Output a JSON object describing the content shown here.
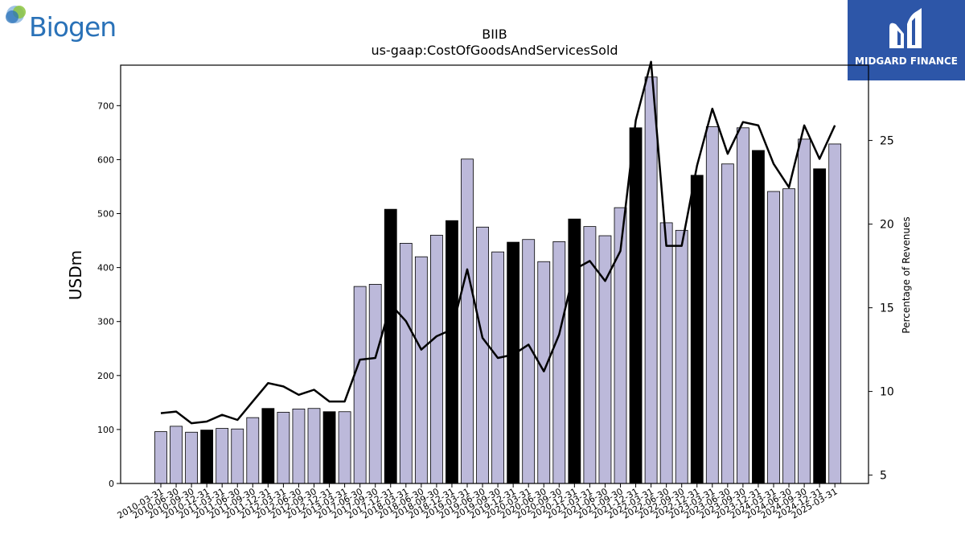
{
  "logos": {
    "left_brand": "Biogen",
    "right_brand": "MIDGARD FINANCE"
  },
  "colors": {
    "bar_default": "#bcb9da",
    "bar_highlight": "#000000",
    "line": "#000000",
    "biogen_blue": "#2a72b8",
    "midgard_blue": "#2d56a8"
  },
  "chart_data": {
    "type": "bar",
    "title": "BIIB",
    "subtitle": "us-gaap:CostOfGoodsAndServicesSold",
    "ylabel": "USDm",
    "y2label": "Percentage of Revenues",
    "ylim": [
      0,
      775
    ],
    "y2lim": [
      4.5,
      29.5
    ],
    "yticks": [
      0,
      100,
      200,
      300,
      400,
      500,
      600,
      700
    ],
    "y2ticks": [
      5,
      10,
      15,
      20,
      25
    ],
    "grid": false,
    "categories": [
      "2010-03-31",
      "2010-06-30",
      "2010-09-30",
      "2010-12-31",
      "2011-03-31",
      "2011-06-30",
      "2011-09-30",
      "2011-12-31",
      "2012-03-31",
      "2012-06-30",
      "2012-09-30",
      "2012-12-31",
      "2013-03-31",
      "2017-06-30",
      "2017-09-30",
      "2017-12-31",
      "2018-03-31",
      "2018-06-30",
      "2018-09-30",
      "2018-12-31",
      "2019-03-31",
      "2019-06-30",
      "2019-09-30",
      "2019-12-31",
      "2020-03-31",
      "2020-06-30",
      "2020-09-30",
      "2020-12-31",
      "2021-03-31",
      "2021-06-30",
      "2021-09-30",
      "2021-12-31",
      "2022-03-31",
      "2022-06-30",
      "2022-09-30",
      "2022-12-31",
      "2023-03-31",
      "2023-06-30",
      "2023-09-30",
      "2023-12-31",
      "2024-03-31",
      "2024-06-30",
      "2024-09-30",
      "2024-12-31",
      "2025-03-31"
    ],
    "series": [
      {
        "kind": "bar",
        "values": [
          96,
          106,
          95,
          99,
          102,
          101,
          122,
          139,
          132,
          138,
          139,
          133,
          133,
          365,
          369,
          508,
          445,
          420,
          460,
          487,
          601,
          475,
          429,
          447,
          452,
          411,
          448,
          490,
          476,
          459,
          511,
          659,
          753,
          483,
          469,
          571,
          661,
          592,
          659,
          617,
          541,
          546,
          638,
          583,
          629
        ],
        "highlight": [
          false,
          false,
          false,
          true,
          false,
          false,
          false,
          true,
          false,
          false,
          false,
          true,
          false,
          false,
          false,
          true,
          false,
          false,
          false,
          true,
          false,
          false,
          false,
          true,
          false,
          false,
          false,
          true,
          false,
          false,
          false,
          true,
          false,
          false,
          false,
          true,
          false,
          false,
          false,
          true,
          false,
          false,
          false,
          true,
          false
        ]
      },
      {
        "kind": "line",
        "axis": "right",
        "values": [
          8.7,
          8.8,
          8.1,
          8.2,
          8.6,
          8.3,
          9.4,
          10.5,
          10.3,
          9.8,
          10.1,
          9.4,
          9.4,
          11.9,
          12.0,
          15.2,
          14.2,
          12.5,
          13.3,
          13.7,
          17.3,
          13.2,
          12.0,
          12.2,
          12.8,
          11.2,
          13.4,
          17.3,
          17.8,
          16.6,
          18.4,
          26.2,
          29.7,
          18.7,
          18.7,
          23.5,
          26.9,
          24.2,
          26.1,
          25.9,
          23.6,
          22.2,
          25.9,
          23.9,
          25.9
        ]
      }
    ]
  }
}
